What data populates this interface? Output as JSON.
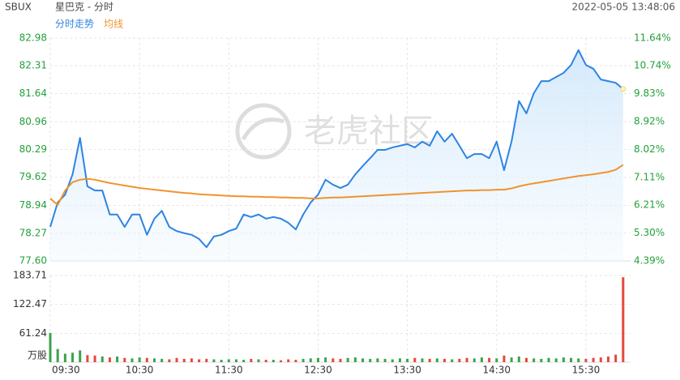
{
  "header": {
    "symbol": "SBUX",
    "name": "星巴克 - 分时",
    "time": "2022-05-05 13:48:06",
    "watermark": "老虎社区"
  },
  "chart_data": [
    {
      "type": "line",
      "x": [
        "09:30",
        "09:35",
        "09:40",
        "09:45",
        "09:50",
        "09:55",
        "10:00",
        "10:05",
        "10:10",
        "10:15",
        "10:20",
        "10:25",
        "10:30",
        "10:35",
        "10:40",
        "10:45",
        "10:50",
        "10:55",
        "11:00",
        "11:05",
        "11:10",
        "11:15",
        "11:20",
        "11:25",
        "11:30",
        "11:35",
        "11:40",
        "11:45",
        "11:50",
        "11:55",
        "12:00",
        "12:05",
        "12:10",
        "12:15",
        "12:20",
        "12:25",
        "12:30",
        "12:35",
        "12:40",
        "12:45",
        "12:50",
        "12:55",
        "13:00",
        "13:05",
        "13:10",
        "13:15",
        "13:20",
        "13:25",
        "13:30",
        "13:35",
        "13:40",
        "13:45",
        "13:50",
        "13:55",
        "14:00",
        "14:05",
        "14:10",
        "14:15",
        "14:20",
        "14:25",
        "14:30",
        "14:35",
        "14:40",
        "14:45",
        "14:50",
        "14:55",
        "15:00",
        "15:05",
        "15:10",
        "15:15",
        "15:20",
        "15:25",
        "15:30",
        "15:35",
        "15:40",
        "15:45",
        "15:50",
        "15:55"
      ],
      "xlim": [
        "09:30",
        "16:00"
      ],
      "series": [
        {
          "name": "分时走势",
          "color": "#2d84e3",
          "values": [
            78.42,
            79.01,
            79.2,
            79.69,
            80.57,
            79.4,
            79.3,
            79.3,
            78.72,
            78.72,
            78.42,
            78.72,
            78.72,
            78.23,
            78.62,
            78.81,
            78.42,
            78.32,
            78.27,
            78.23,
            78.13,
            77.93,
            78.19,
            78.23,
            78.32,
            78.38,
            78.72,
            78.66,
            78.72,
            78.62,
            78.66,
            78.62,
            78.52,
            78.36,
            78.72,
            79.01,
            79.2,
            79.56,
            79.44,
            79.36,
            79.44,
            79.69,
            79.89,
            80.08,
            80.28,
            80.28,
            80.34,
            80.38,
            80.42,
            80.34,
            80.48,
            80.38,
            80.73,
            80.48,
            80.67,
            80.38,
            80.08,
            80.18,
            80.18,
            80.08,
            80.48,
            79.79,
            80.48,
            81.46,
            81.16,
            81.65,
            81.94,
            81.94,
            82.04,
            82.14,
            82.33,
            82.69,
            82.33,
            82.24,
            81.98,
            81.94,
            81.9,
            81.75
          ]
        },
        {
          "name": "均线",
          "color": "#f0932e",
          "values": [
            79.11,
            78.95,
            79.3,
            79.5,
            79.56,
            79.58,
            79.56,
            79.52,
            79.48,
            79.45,
            79.42,
            79.39,
            79.36,
            79.34,
            79.32,
            79.3,
            79.28,
            79.26,
            79.24,
            79.23,
            79.21,
            79.2,
            79.19,
            79.18,
            79.17,
            79.16,
            79.16,
            79.15,
            79.15,
            79.14,
            79.14,
            79.13,
            79.13,
            79.12,
            79.12,
            79.11,
            79.11,
            79.12,
            79.13,
            79.13,
            79.14,
            79.15,
            79.16,
            79.17,
            79.18,
            79.19,
            79.2,
            79.21,
            79.22,
            79.23,
            79.24,
            79.25,
            79.26,
            79.27,
            79.28,
            79.29,
            79.3,
            79.3,
            79.31,
            79.31,
            79.32,
            79.32,
            79.35,
            79.4,
            79.44,
            79.47,
            79.5,
            79.53,
            79.56,
            79.59,
            79.62,
            79.65,
            79.67,
            79.69,
            79.72,
            79.75,
            79.8,
            79.92
          ]
        }
      ],
      "ylim": [
        77.6,
        82.98
      ],
      "yticks": [
        82.98,
        82.31,
        81.64,
        80.96,
        80.29,
        79.62,
        78.94,
        78.27,
        "77.60"
      ],
      "y2lim": [
        4.39,
        11.64
      ],
      "y2ticks": [
        {
          "value": 11.64,
          "label": "11.64%"
        },
        {
          "value": 10.74,
          "label": "10.74%"
        },
        {
          "value": 9.83,
          "label": "9.83%"
        },
        {
          "value": 8.92,
          "label": "8.92%"
        },
        {
          "value": 8.02,
          "label": "8.02%"
        },
        {
          "value": 7.11,
          "label": "7.11%"
        },
        {
          "value": 6.21,
          "label": "6.21%"
        },
        {
          "value": 5.3,
          "label": "5.30%"
        },
        {
          "value": 4.39,
          "label": "4.39%"
        }
      ],
      "grid": true
    },
    {
      "type": "bar",
      "values": [
        62,
        28,
        18,
        20,
        25,
        15,
        14,
        12,
        10,
        12,
        9,
        8,
        10,
        9,
        8,
        7,
        6,
        9,
        7,
        8,
        6,
        7,
        6,
        5,
        6,
        6,
        5,
        7,
        6,
        5,
        5,
        4,
        6,
        5,
        7,
        8,
        9,
        10,
        8,
        7,
        9,
        10,
        8,
        7,
        8,
        7,
        6,
        8,
        7,
        9,
        8,
        7,
        8,
        7,
        6,
        7,
        9,
        8,
        10,
        9,
        8,
        14,
        10,
        12,
        9,
        8,
        7,
        9,
        8,
        10,
        9,
        8,
        7,
        9,
        10,
        12,
        16,
        180
      ],
      "up_color": "#3aa34a",
      "down_color": "#e5483c",
      "ylim": [
        0,
        183.71
      ],
      "yticks": [
        183.71,
        122.47,
        61.24,
        {
          "value": 0,
          "label": "万股"
        }
      ],
      "xticks": [
        "09:30",
        "10:30",
        "11:30",
        "12:30",
        "13:30",
        "14:30",
        "15:30"
      ],
      "grid": true
    }
  ]
}
